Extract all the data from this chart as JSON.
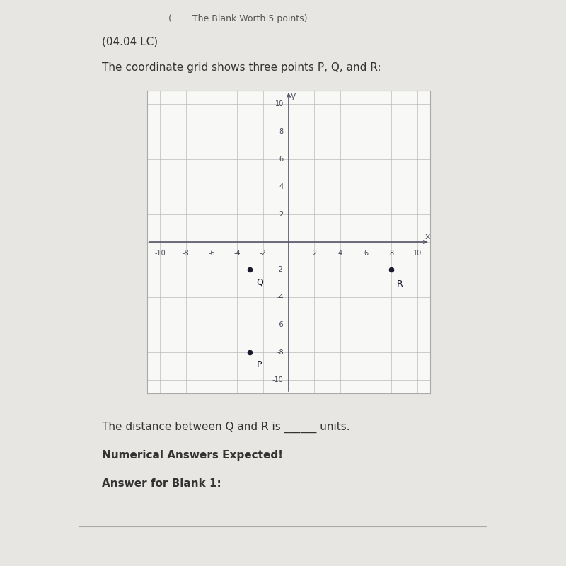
{
  "page_bg": "#e8e6e2",
  "chart_bg": "#f0eeeb",
  "plot_bg_color": "#f8f8f6",
  "grid_color": "#bbbbbb",
  "axis_color": "#555566",
  "point_color": "#1a1a2e",
  "border_color": "#aaaaaa",
  "points": {
    "P": [
      -3,
      -8
    ],
    "Q": [
      -3,
      -2
    ],
    "R": [
      8,
      -2
    ]
  },
  "xlim": [
    -11,
    11
  ],
  "ylim": [
    -11,
    11
  ],
  "xticks": [
    -10,
    -8,
    -6,
    -4,
    -2,
    0,
    2,
    4,
    6,
    8,
    10
  ],
  "yticks": [
    -10,
    -8,
    -6,
    -4,
    -2,
    0,
    2,
    4,
    6,
    8,
    10
  ],
  "header_top": "(…… The Blank Worth 5 points)",
  "title_header": "(04.04 LC)",
  "subtitle": "The coordinate grid shows three points P, Q, and R:",
  "footer1": "The distance between Q and R is ______ units.",
  "footer2": "Numerical Answers Expected!",
  "footer3": "Answer for Blank 1:",
  "text_color": "#333333",
  "tick_fontsize": 7,
  "label_fontsize": 11
}
